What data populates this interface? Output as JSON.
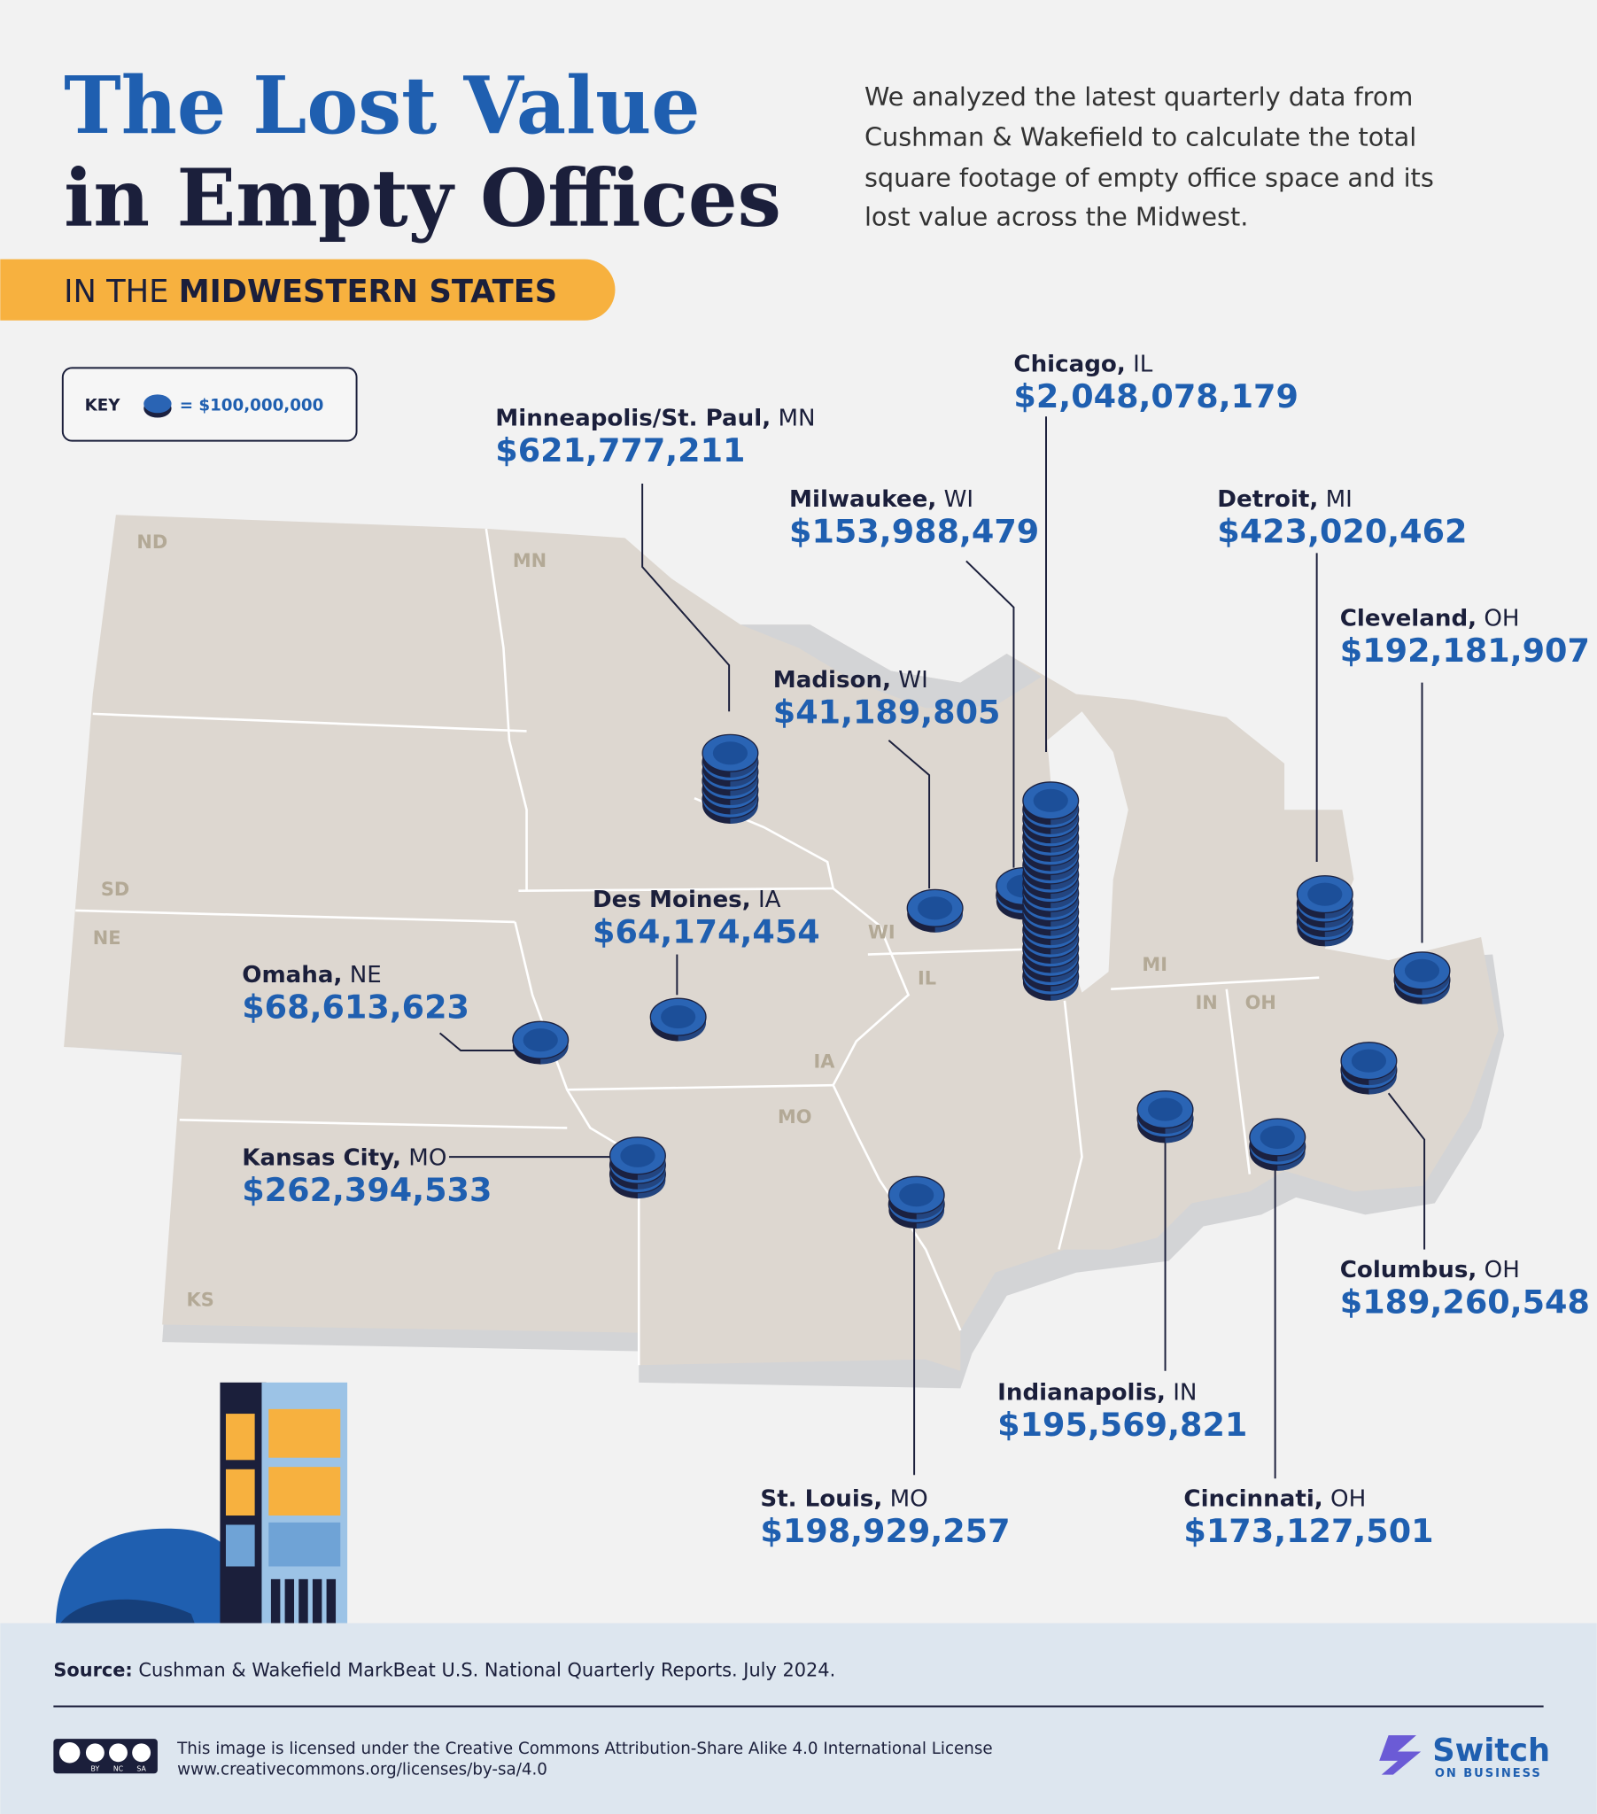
{
  "title": {
    "line1": "The Lost Value",
    "line2": "in Empty Offices"
  },
  "intro": [
    "We analyzed the latest quarterly data from",
    "Cushman & Wakefield to calculate the total",
    "square footage of empty office space and its",
    "lost value across the Midwest."
  ],
  "subtitle": {
    "prefix": "IN THE",
    "emphasis": "MIDWESTERN STATES"
  },
  "key": {
    "label": "KEY",
    "value": "= $100,000,000"
  },
  "map_labels": [
    "ND",
    "MN",
    "SD",
    "NE",
    "WI",
    "IL",
    "MI",
    "IN",
    "OH",
    "IA",
    "MO",
    "KS"
  ],
  "cities": [
    {
      "name": "Minneapolis/St. Paul,",
      "state": "MN",
      "value": "$621,777,211"
    },
    {
      "name": "Chicago,",
      "state": "IL",
      "value": "$2,048,078,179"
    },
    {
      "name": "Milwaukee,",
      "state": "WI",
      "value": "$153,988,479"
    },
    {
      "name": "Detroit,",
      "state": "MI",
      "value": "$423,020,462"
    },
    {
      "name": "Cleveland,",
      "state": "OH",
      "value": "$192,181,907"
    },
    {
      "name": "Madison,",
      "state": "WI",
      "value": "$41,189,805"
    },
    {
      "name": "Des Moines,",
      "state": "IA",
      "value": "$64,174,454"
    },
    {
      "name": "Omaha,",
      "state": "NE",
      "value": "$68,613,623"
    },
    {
      "name": "Kansas City,",
      "state": "MO",
      "value": "$262,394,533"
    },
    {
      "name": "St. Louis,",
      "state": "MO",
      "value": "$198,929,257"
    },
    {
      "name": "Indianapolis,",
      "state": "IN",
      "value": "$195,569,821"
    },
    {
      "name": "Cincinnati,",
      "state": "OH",
      "value": "$173,127,501"
    },
    {
      "name": "Columbus,",
      "state": "OH",
      "value": "$189,260,548"
    }
  ],
  "footer": {
    "source_label": "Source:",
    "source_text": "Cushman & Wakefield MarkBeat U.S. National Quarterly Reports. July 2024.",
    "license_lines": [
      "This image is licensed under the Creative Commons Attribution-Share Alike 4.0 International License",
      "www.creativecommons.org/licenses/by-sa/4.0"
    ],
    "cc_badge": [
      "BY",
      "NC",
      "SA"
    ],
    "logo_name": "Switch",
    "logo_tag": "ON BUSINESS"
  }
}
